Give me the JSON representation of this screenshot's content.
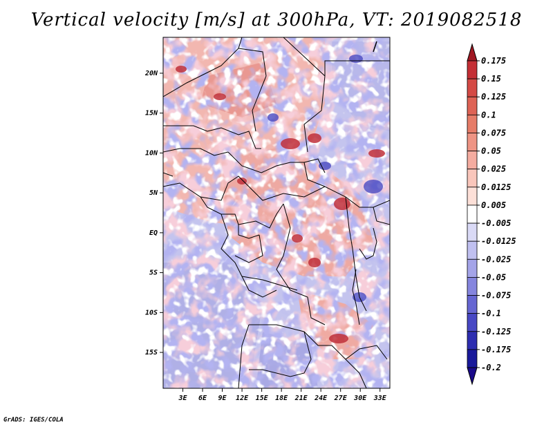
{
  "title": "Vertical velocity [m/s] at 300hPa, VT: 2019082518",
  "footer": "GrADS: IGES/COLA",
  "map": {
    "lat_ticks": [
      "20N",
      "15N",
      "10N",
      "5N",
      "EQ",
      "5S",
      "10S",
      "15S"
    ],
    "lon_ticks": [
      "3E",
      "6E",
      "9E",
      "12E",
      "15E",
      "18E",
      "21E",
      "24E",
      "27E",
      "30E",
      "33E"
    ],
    "lat_range": [
      -19.5,
      24.5
    ],
    "lon_range": [
      0,
      34.5
    ]
  },
  "colorbar": {
    "labels": [
      "0.175",
      "0.15",
      "0.125",
      "0.1",
      "0.075",
      "0.05",
      "0.025",
      "0.0125",
      "0.005",
      "-0.005",
      "-0.0125",
      "-0.025",
      "-0.05",
      "-0.075",
      "-0.1",
      "-0.125",
      "-0.175",
      "-0.2"
    ],
    "colors": [
      "#b2182b",
      "#c42f35",
      "#d44a45",
      "#de6355",
      "#e67c68",
      "#ee9484",
      "#f4aca0",
      "#f9c6bb",
      "#fde0d8",
      "#ffffff",
      "#dadaf6",
      "#c0c0f0",
      "#a4a4e8",
      "#8585de",
      "#6666d2",
      "#4848c4",
      "#2d2db0",
      "#19199a",
      "#0f0f88"
    ],
    "top_color": "#a01822",
    "bottom_color": "#1a0a8a"
  }
}
